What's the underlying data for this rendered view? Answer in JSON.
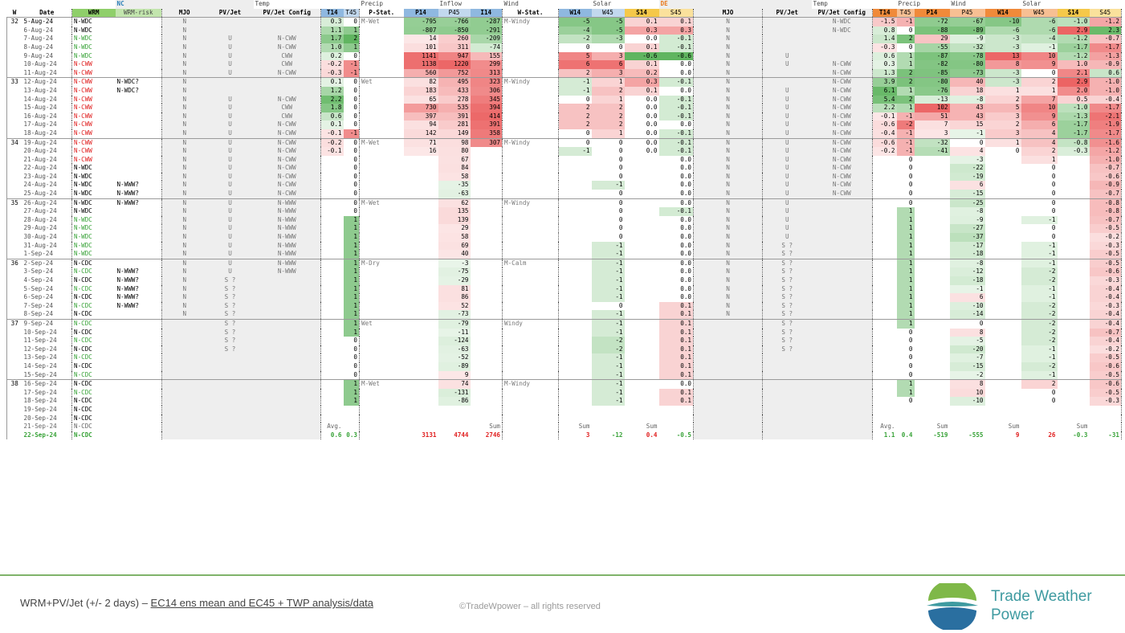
{
  "header": {
    "nc_label": "NC",
    "de_label": "DE",
    "group_labels": {
      "temp": "Temp",
      "precip": "Precip",
      "inflow": "Inflow",
      "wind": "Wind",
      "solar": "Solar",
      "de_temp": "Temp",
      "de_precip": "Precip",
      "de_wind": "Wind",
      "de_solar": "Solar"
    },
    "columns": {
      "w": "W",
      "date": "Date",
      "wrm": "WRM",
      "wrm_risk": "WRM-risk",
      "mjo": "MJO",
      "pvjet": "PV/Jet",
      "pvjet_config": "PV/Jet Config",
      "t14": "T14",
      "t45": "T45",
      "pstat": "P-Stat.",
      "p14": "P14",
      "p45": "P45",
      "i14": "I14",
      "wstat": "W-Stat.",
      "w14": "W14",
      "w45": "W45",
      "s14": "S14",
      "s45": "S45",
      "de_mjo": "MJO",
      "de_pvjet": "PV/Jet",
      "de_pvjet_config": "PV/Jet Config",
      "de_t14": "T14",
      "de_t45": "T45",
      "de_p14": "P14",
      "de_p45": "P45",
      "de_w14": "W14",
      "de_w45": "W45",
      "de_s14": "S14",
      "de_s45": "S45"
    }
  },
  "rows": [
    [
      "32",
      "5-Aug-24",
      "N-WDC",
      "",
      "N",
      "",
      "",
      "0.3",
      "0",
      "M-Wet",
      "-795",
      "-766",
      "-287",
      "M-Windy",
      "-5",
      "-5",
      "0.1",
      "0.1",
      "N",
      "",
      "N-WDC",
      "-1.5",
      "-1",
      "-72",
      "-67",
      "-10",
      "-6",
      "-1.0",
      "-1.2"
    ],
    [
      "",
      "6-Aug-24",
      "N-WDC",
      "",
      "N",
      "",
      "",
      "1.1",
      "1",
      "",
      "-807",
      "-850",
      "-291",
      "",
      "-4",
      "-5",
      "0.3",
      "0.3",
      "N",
      "",
      "N-WDC",
      "0.8",
      "0",
      "-88",
      "-89",
      "-6",
      "-6",
      "2.9",
      "2.3"
    ],
    [
      "",
      "7-Aug-24",
      "N-WDC",
      "",
      "N",
      "U",
      "N-CWW",
      "1.7",
      "2",
      "",
      "14",
      "260",
      "-209",
      "",
      "-2",
      "-3",
      "0.0",
      "-0.1",
      "N",
      "",
      "",
      "1.4",
      "2",
      "29",
      "-9",
      "-3",
      "-4",
      "-1.2",
      "-0.7"
    ],
    [
      "",
      "8-Aug-24",
      "N-WDC",
      "",
      "N",
      "U",
      "N-CWW",
      "1.0",
      "1",
      "",
      "101",
      "311",
      "-74",
      "",
      "0",
      "0",
      "0.1",
      "-0.1",
      "N",
      "",
      "",
      "-0.3",
      "0",
      "-55",
      "-32",
      "-3",
      "-1",
      "-1.7",
      "-1.7"
    ],
    [
      "",
      "9-Aug-24",
      "N-WDC",
      "",
      "N",
      "U",
      "CWW",
      "0.2",
      "0",
      "",
      "1141",
      "947",
      "155",
      "",
      "5",
      "3",
      "-0.6",
      "-0.6",
      "N",
      "U",
      "",
      "0.6",
      "1",
      "-87",
      "-78",
      "13",
      "10",
      "-1.2",
      "-1.3"
    ],
    [
      "",
      "10-Aug-24",
      "N-CWW",
      "",
      "N",
      "U",
      "CWW",
      "-0.2",
      "-1",
      "",
      "1138",
      "1220",
      "299",
      "",
      "6",
      "6",
      "0.1",
      "0.0",
      "N",
      "U",
      "N-CWW",
      "0.3",
      "1",
      "-82",
      "-80",
      "8",
      "9",
      "1.0",
      "-0.9"
    ],
    [
      "",
      "11-Aug-24",
      "N-CWW",
      "",
      "N",
      "U",
      "N-CWW",
      "-0.3",
      "-1",
      "",
      "560",
      "752",
      "313",
      "",
      "2",
      "3",
      "0.2",
      "0.0",
      "N",
      "",
      "N-CWW",
      "1.3",
      "2",
      "-85",
      "-73",
      "-3",
      "0",
      "2.1",
      "0.6"
    ],
    [
      "33",
      "12-Aug-24",
      "N-CWW",
      "N-WDC?",
      "N",
      "",
      "",
      "0.1",
      "0",
      "Wet",
      "82",
      "495",
      "323",
      "M-Windy",
      "-1",
      "1",
      "0.3",
      "-0.1",
      "N",
      "",
      "N-CWW",
      "3.9",
      "2",
      "-80",
      "40",
      "-3",
      "2",
      "2.9",
      "-1.0"
    ],
    [
      "",
      "13-Aug-24",
      "N-CWW",
      "N-WDC?",
      "N",
      "",
      "",
      "1.2",
      "0",
      "",
      "183",
      "433",
      "306",
      "",
      "-1",
      "2",
      "0.1",
      "0.0",
      "N",
      "U",
      "N-CWW",
      "6.1",
      "1",
      "-76",
      "18",
      "1",
      "1",
      "2.0",
      "-1.0"
    ],
    [
      "",
      "14-Aug-24",
      "N-CWW",
      "",
      "N",
      "U",
      "N-CWW",
      "2.2",
      "0",
      "",
      "65",
      "278",
      "345",
      "",
      "0",
      "1",
      "0.0",
      "-0.1",
      "N",
      "U",
      "N-CWW",
      "5.4",
      "2",
      "-13",
      "-8",
      "2",
      "7",
      "0.5",
      "-0.4"
    ],
    [
      "",
      "15-Aug-24",
      "N-CWW",
      "",
      "N",
      "U",
      "CWW",
      "1.8",
      "0",
      "",
      "730",
      "535",
      "394",
      "",
      "2",
      "2",
      "0.0",
      "-0.1",
      "N",
      "U",
      "N-CWW",
      "2.2",
      "1",
      "102",
      "43",
      "5",
      "10",
      "-1.0",
      "-1.7"
    ],
    [
      "",
      "16-Aug-24",
      "N-CWW",
      "",
      "N",
      "U",
      "CWW",
      "0.6",
      "0",
      "",
      "397",
      "391",
      "414",
      "",
      "2",
      "2",
      "0.0",
      "-0.1",
      "N",
      "U",
      "N-CWW",
      "-0.1",
      "-1",
      "51",
      "43",
      "3",
      "9",
      "-1.3",
      "-2.1"
    ],
    [
      "",
      "17-Aug-24",
      "N-CWW",
      "",
      "N",
      "U",
      "N-CWW",
      "0.1",
      "0",
      "",
      "94",
      "281",
      "391",
      "",
      "2",
      "2",
      "0.0",
      "0.0",
      "N",
      "U",
      "N-CWW",
      "-0.6",
      "-2",
      "7",
      "15",
      "2",
      "6",
      "-1.7",
      "-1.9"
    ],
    [
      "",
      "18-Aug-24",
      "N-CWW",
      "",
      "N",
      "U",
      "N-CWW",
      "-0.1",
      "-1",
      "",
      "142",
      "149",
      "358",
      "",
      "0",
      "1",
      "0.0",
      "-0.1",
      "N",
      "U",
      "N-CWW",
      "-0.4",
      "-1",
      "3",
      "-1",
      "3",
      "4",
      "-1.7",
      "-1.7"
    ],
    [
      "34",
      "19-Aug-24",
      "N-CWW",
      "",
      "N",
      "U",
      "N-CWW",
      "-0.2",
      "0",
      "M-Wet",
      "71",
      "98",
      "307",
      "M-Windy",
      "0",
      "0",
      "0.0",
      "-0.1",
      "N",
      "U",
      "N-CWW",
      "-0.6",
      "-1",
      "-32",
      "0",
      "1",
      "4",
      "-0.8",
      "-1.6"
    ],
    [
      "",
      "20-Aug-24",
      "N-CWW",
      "",
      "N",
      "U",
      "N-CWW",
      "-0.1",
      "0",
      "",
      "16",
      "80",
      "",
      "",
      "-1",
      "0",
      "0.0",
      "-0.1",
      "N",
      "U",
      "N-CWW",
      "-0.2",
      "-1",
      "-41",
      "4",
      "0",
      "2",
      "-0.3",
      "-1.2"
    ],
    [
      "",
      "21-Aug-24",
      "N-CWW",
      "",
      "N",
      "U",
      "N-CWW",
      "",
      "0",
      "",
      "",
      "67",
      "",
      "",
      "",
      "0",
      "",
      "0.0",
      "N",
      "U",
      "N-CWW",
      "",
      "0",
      "",
      "-3",
      "",
      "1",
      "",
      "-1.0"
    ],
    [
      "",
      "22-Aug-24",
      "N-WDC",
      "",
      "N",
      "U",
      "N-CWW",
      "",
      "0",
      "",
      "",
      "84",
      "",
      "",
      "",
      "0",
      "",
      "0.0",
      "N",
      "U",
      "N-CWW",
      "",
      "0",
      "",
      "-22",
      "",
      "0",
      "",
      "-0.7"
    ],
    [
      "",
      "23-Aug-24",
      "N-WDC",
      "",
      "N",
      "U",
      "N-CWW",
      "",
      "0",
      "",
      "",
      "58",
      "",
      "",
      "",
      "0",
      "",
      "0.0",
      "N",
      "U",
      "N-CWW",
      "",
      "0",
      "",
      "-19",
      "",
      "0",
      "",
      "-0.6"
    ],
    [
      "",
      "24-Aug-24",
      "N-WDC",
      "N-WWW?",
      "N",
      "U",
      "N-CWW",
      "",
      "0",
      "",
      "",
      "-35",
      "",
      "",
      "",
      "-1",
      "",
      "0.0",
      "N",
      "U",
      "N-CWW",
      "",
      "0",
      "",
      "6",
      "",
      "0",
      "",
      "-0.9"
    ],
    [
      "",
      "25-Aug-24",
      "N-WDC",
      "N-WWW?",
      "N",
      "U",
      "N-CWW",
      "",
      "0",
      "",
      "",
      "-63",
      "",
      "",
      "",
      "0",
      "",
      "0.0",
      "N",
      "U",
      "N-CWW",
      "",
      "0",
      "",
      "-15",
      "",
      "0",
      "",
      "-0.7"
    ],
    [
      "35",
      "26-Aug-24",
      "N-WDC",
      "N-WWW?",
      "N",
      "U",
      "N-WWW",
      "",
      "0",
      "M-Wet",
      "",
      "62",
      "",
      "M-Windy",
      "",
      "0",
      "",
      "0.0",
      "N",
      "U",
      "",
      "",
      "0",
      "",
      "-25",
      "",
      "0",
      "",
      "-0.8"
    ],
    [
      "",
      "27-Aug-24",
      "N-WDC",
      "",
      "N",
      "U",
      "N-WWW",
      "",
      "0",
      "",
      "",
      "135",
      "",
      "",
      "",
      "0",
      "",
      "-0.1",
      "N",
      "U",
      "",
      "",
      "1",
      "",
      "-8",
      "",
      "0",
      "",
      "-0.8"
    ],
    [
      "",
      "28-Aug-24",
      "N-WDC",
      "",
      "N",
      "U",
      "N-WWW",
      "",
      "1",
      "",
      "",
      "139",
      "",
      "",
      "",
      "0",
      "",
      "0.0",
      "N",
      "U",
      "",
      "",
      "1",
      "",
      "-9",
      "",
      "-1",
      "",
      "-0.7"
    ],
    [
      "",
      "29-Aug-24",
      "N-WDC",
      "",
      "N",
      "U",
      "N-WWW",
      "",
      "1",
      "",
      "",
      "29",
      "",
      "",
      "",
      "0",
      "",
      "0.0",
      "N",
      "U",
      "",
      "",
      "1",
      "",
      "-27",
      "",
      "0",
      "",
      "-0.5"
    ],
    [
      "",
      "30-Aug-24",
      "N-WDC",
      "",
      "N",
      "U",
      "N-WWW",
      "",
      "1",
      "",
      "",
      "58",
      "",
      "",
      "",
      "0",
      "",
      "0.0",
      "N",
      "U",
      "",
      "",
      "1",
      "",
      "-37",
      "",
      "0",
      "",
      "-0.2"
    ],
    [
      "",
      "31-Aug-24",
      "N-WDC",
      "",
      "N",
      "U",
      "N-WWW",
      "",
      "1",
      "",
      "",
      "69",
      "",
      "",
      "",
      "-1",
      "",
      "0.0",
      "N",
      "S ?",
      "",
      "",
      "1",
      "",
      "-17",
      "",
      "-1",
      "",
      "-0.3"
    ],
    [
      "",
      "1-Sep-24",
      "N-WDC",
      "",
      "N",
      "U",
      "N-WWW",
      "",
      "1",
      "",
      "",
      "40",
      "",
      "",
      "",
      "-1",
      "",
      "0.0",
      "N",
      "S ?",
      "",
      "",
      "1",
      "",
      "-18",
      "",
      "-1",
      "",
      "-0.5"
    ],
    [
      "36",
      "2-Sep-24",
      "N-CDC",
      "",
      "N",
      "U",
      "N-WWW",
      "",
      "1",
      "M-Dry",
      "",
      "-3",
      "",
      "M-Calm",
      "",
      "-1",
      "",
      "0.0",
      "N",
      "S ?",
      "",
      "",
      "1",
      "",
      "-8",
      "",
      "-1",
      "",
      "-0.5"
    ],
    [
      "",
      "3-Sep-24",
      "N-CDC",
      "N-WWW?",
      "N",
      "U",
      "N-WWW",
      "",
      "1",
      "",
      "",
      "-75",
      "",
      "",
      "",
      "-1",
      "",
      "0.0",
      "N",
      "S ?",
      "",
      "",
      "1",
      "",
      "-12",
      "",
      "-2",
      "",
      "-0.6"
    ],
    [
      "",
      "4-Sep-24",
      "N-CDC",
      "N-WWW?",
      "N",
      "S ?",
      "",
      "",
      "1",
      "",
      "",
      "-29",
      "",
      "",
      "",
      "-1",
      "",
      "0.0",
      "N",
      "S ?",
      "",
      "",
      "1",
      "",
      "-18",
      "",
      "-2",
      "",
      "-0.3"
    ],
    [
      "",
      "5-Sep-24",
      "N-CDC",
      "N-WWW?",
      "N",
      "S ?",
      "",
      "",
      "1",
      "",
      "",
      "81",
      "",
      "",
      "",
      "-1",
      "",
      "0.0",
      "N",
      "S ?",
      "",
      "",
      "1",
      "",
      "-1",
      "",
      "-1",
      "",
      "-0.4"
    ],
    [
      "",
      "6-Sep-24",
      "N-CDC",
      "N-WWW?",
      "N",
      "S ?",
      "",
      "",
      "1",
      "",
      "",
      "86",
      "",
      "",
      "",
      "-1",
      "",
      "0.0",
      "N",
      "S ?",
      "",
      "",
      "1",
      "",
      "6",
      "",
      "-1",
      "",
      "-0.4"
    ],
    [
      "",
      "7-Sep-24",
      "N-CDC",
      "N-WWW?",
      "N",
      "S ?",
      "",
      "",
      "1",
      "",
      "",
      "52",
      "",
      "",
      "",
      "0",
      "",
      "0.1",
      "N",
      "S ?",
      "",
      "",
      "1",
      "",
      "-10",
      "",
      "-2",
      "",
      "-0.3"
    ],
    [
      "",
      "8-Sep-24",
      "N-CDC",
      "",
      "N",
      "S ?",
      "",
      "",
      "1",
      "",
      "",
      "-73",
      "",
      "",
      "",
      "-1",
      "",
      "0.1",
      "N",
      "S ?",
      "",
      "",
      "1",
      "",
      "-14",
      "",
      "-2",
      "",
      "-0.4"
    ],
    [
      "37",
      "9-Sep-24",
      "N-CDC",
      "",
      "",
      "S ?",
      "",
      "",
      "1",
      "Wet",
      "",
      "-79",
      "",
      "Windy",
      "",
      "-1",
      "",
      "0.1",
      "",
      "S ?",
      "",
      "",
      "1",
      "",
      "0",
      "",
      "-2",
      "",
      "-0.4"
    ],
    [
      "",
      "10-Sep-24",
      "N-CDC",
      "",
      "",
      "S ?",
      "",
      "",
      "1",
      "",
      "",
      "-11",
      "",
      "",
      "",
      "-1",
      "",
      "0.1",
      "",
      "S ?",
      "",
      "",
      "0",
      "",
      "8",
      "",
      "-2",
      "",
      "-0.7"
    ],
    [
      "",
      "11-Sep-24",
      "N-CDC",
      "",
      "",
      "S ?",
      "",
      "",
      "0",
      "",
      "",
      "-124",
      "",
      "",
      "",
      "-2",
      "",
      "0.1",
      "",
      "S ?",
      "",
      "",
      "0",
      "",
      "-5",
      "",
      "-2",
      "",
      "-0.4"
    ],
    [
      "",
      "12-Sep-24",
      "N-CDC",
      "",
      "",
      "S ?",
      "",
      "",
      "0",
      "",
      "",
      "-63",
      "",
      "",
      "",
      "-2",
      "",
      "0.1",
      "",
      "S ?",
      "",
      "",
      "0",
      "",
      "-20",
      "",
      "-1",
      "",
      "-0.2"
    ],
    [
      "",
      "13-Sep-24",
      "N-CDC",
      "",
      "",
      "",
      "",
      "",
      "0",
      "",
      "",
      "-52",
      "",
      "",
      "",
      "-1",
      "",
      "0.1",
      "",
      "",
      "",
      "",
      "0",
      "",
      "-7",
      "",
      "-1",
      "",
      "-0.5"
    ],
    [
      "",
      "14-Sep-24",
      "N-CDC",
      "",
      "",
      "",
      "",
      "",
      "0",
      "",
      "",
      "-89",
      "",
      "",
      "",
      "-1",
      "",
      "0.1",
      "",
      "",
      "",
      "",
      "0",
      "",
      "-15",
      "",
      "-2",
      "",
      "-0.6"
    ],
    [
      "",
      "15-Sep-24",
      "N-CDC",
      "",
      "",
      "",
      "",
      "",
      "0",
      "",
      "",
      "9",
      "",
      "",
      "",
      "-1",
      "",
      "0.1",
      "",
      "",
      "",
      "",
      "0",
      "",
      "-2",
      "",
      "-1",
      "",
      "-0.5"
    ],
    [
      "38",
      "16-Sep-24",
      "N-CDC",
      "",
      "",
      "",
      "",
      "",
      "1",
      "M-Wet",
      "",
      "74",
      "",
      "M-Windy",
      "",
      "-1",
      "",
      "0.0",
      "",
      "",
      "",
      "",
      "1",
      "",
      "8",
      "",
      "2",
      "",
      "-0.6"
    ],
    [
      "",
      "17-Sep-24",
      "N-CDC",
      "",
      "",
      "",
      "",
      "",
      "1",
      "",
      "",
      "-131",
      "",
      "",
      "",
      "-1",
      "",
      "0.1",
      "",
      "",
      "",
      "",
      "1",
      "",
      "10",
      "",
      "0",
      "",
      "-0.5"
    ],
    [
      "",
      "18-Sep-24",
      "N-CDC",
      "",
      "",
      "",
      "",
      "",
      "1",
      "",
      "",
      "-86",
      "",
      "",
      "",
      "-1",
      "",
      "0.1",
      "",
      "",
      "",
      "",
      "0",
      "",
      "-10",
      "",
      "0",
      "",
      "-0.3"
    ],
    [
      "",
      "19-Sep-24",
      "N-CDC",
      "",
      "",
      "",
      "",
      "",
      "",
      "",
      "",
      "",
      "",
      "",
      "",
      "",
      "",
      "",
      "",
      "",
      "",
      "",
      "",
      "",
      "",
      "",
      "",
      "",
      ""
    ],
    [
      "",
      "20-Sep-24",
      "N-CDC",
      "",
      "",
      "",
      "",
      "",
      "",
      "",
      "",
      "",
      "",
      "",
      "",
      "",
      "",
      "",
      "",
      "",
      "",
      "",
      "",
      "",
      "",
      "",
      "",
      "",
      ""
    ],
    [
      "",
      "21-Sep-24",
      "N-CDC",
      "",
      "",
      "",
      "",
      "Avg.",
      "",
      "",
      "",
      "",
      "Sum",
      "",
      "Sum",
      "",
      "Sum",
      "",
      "",
      "",
      "",
      "Avg.",
      "",
      "Sum",
      "",
      "Sum",
      "",
      "Sum",
      ""
    ],
    [
      "",
      "22-Sep-24",
      "N-CDC",
      "",
      "",
      "",
      "",
      "0.6",
      "0.3",
      "",
      "3131",
      "4744",
      "2746",
      "",
      "3",
      "-12",
      "0.4",
      "-0.5",
      "",
      "",
      "",
      "1.1",
      "0.4",
      "-519",
      "-555",
      "9",
      "26",
      "-0.3",
      "-31"
    ]
  ],
  "colors": {
    "wrm_green": "#39a339",
    "wrm_red": "#e01f1f",
    "nc_blue": "#2a7fb8",
    "de_orange": "#e8791d",
    "hdr_wrm": "#8fcf6a",
    "hdr_t14": "#8fb8e0",
    "hdr_p14": "#8fb8e0",
    "hdr_i14": "#8fb8e0",
    "hdr_w14": "#8fb8e0",
    "hdr_s14": "#f5c84a",
    "hdr_de_t14": "#f08a3a",
    "hdr_de_p14": "#f08a3a",
    "hdr_de_w14": "#f08a3a",
    "hdr_de_s14": "#f5c84a",
    "footer_line": "#7fb36a",
    "brand": "#3e9aa0"
  },
  "footer": {
    "text_prefix": "WRM+PV/Jet (+/- 2 days) – ",
    "text_link": "EC14 ens mean and EC45 + TWP analysis/data",
    "copyright": "©TradeWpower – all rights reserved",
    "brand_line1": "Trade Weather",
    "brand_line2": "Power",
    "logo_icon": "trade-weather-power-logo"
  }
}
